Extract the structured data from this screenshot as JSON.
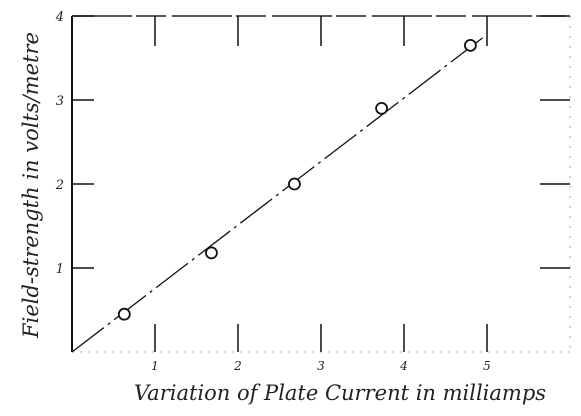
{
  "chart_data": {
    "type": "scatter",
    "xlabel": "Variation of Plate Current in milliamps",
    "ylabel": "Field-strength in volts/metre",
    "xlim": [
      0,
      6
    ],
    "ylim": [
      0,
      4
    ],
    "x_ticks": [
      {
        "value": 1,
        "label": "1"
      },
      {
        "value": 2,
        "label": "2"
      },
      {
        "value": 3,
        "label": "3"
      },
      {
        "value": 4,
        "label": "4"
      },
      {
        "value": 5,
        "label": "5"
      }
    ],
    "y_ticks": [
      {
        "value": 1,
        "label": "1"
      },
      {
        "value": 2,
        "label": "2"
      },
      {
        "value": 3,
        "label": "3"
      },
      {
        "value": 4,
        "label": "4"
      }
    ],
    "points": [
      {
        "x": 0.63,
        "y": 0.45
      },
      {
        "x": 1.68,
        "y": 1.18
      },
      {
        "x": 2.68,
        "y": 2.0
      },
      {
        "x": 3.73,
        "y": 2.9
      },
      {
        "x": 4.8,
        "y": 3.65
      }
    ],
    "fit_line": {
      "x0": 0,
      "y0": 0,
      "x1": 5.0,
      "y1": 3.78
    },
    "grid": false
  }
}
